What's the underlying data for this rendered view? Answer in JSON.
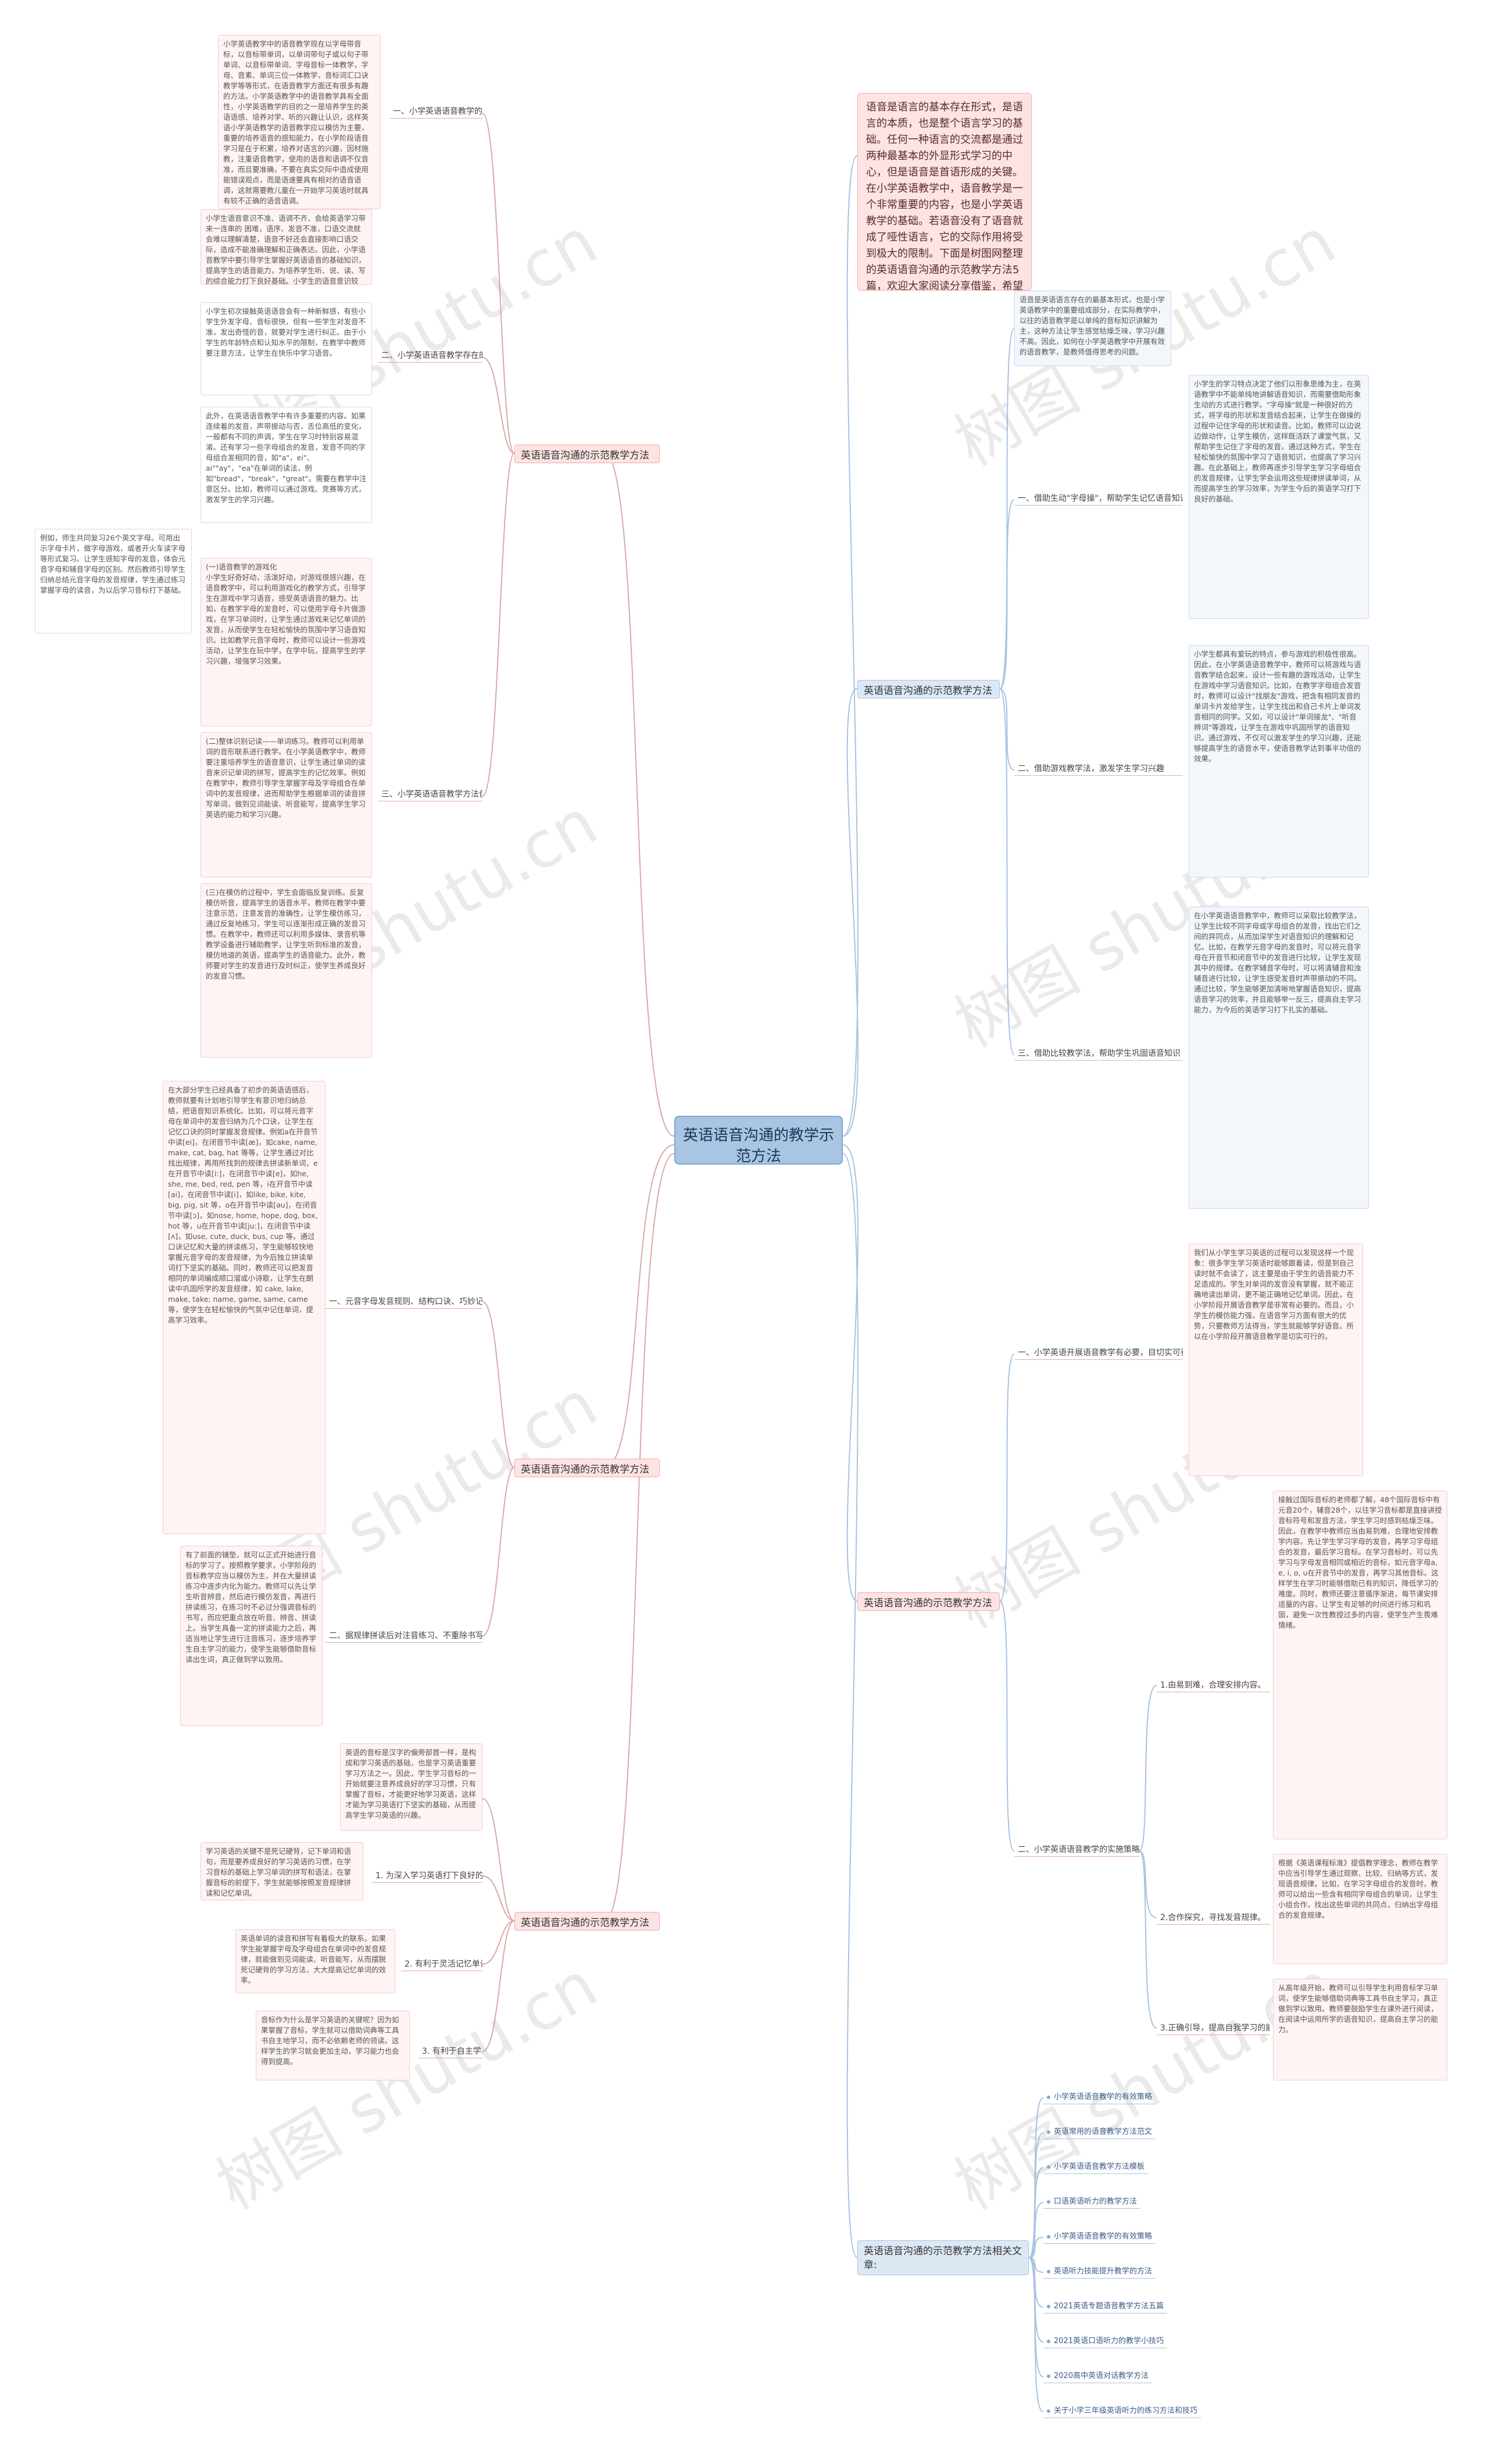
{
  "central": "英语语音沟通的教学示范方法",
  "watermark": "树图 shutu.cn",
  "intro": "语音是语言的基本存在形式，是语言的本质，也是整个语言学习的基础。任何一种语言的交流都是通过两种最基本的外显形式学习的中心，但是语音是首语形成的关键。在小学英语教学中，语音教学是一个非常重要的内容，也是小学英语教学的基础。若语音没有了语音就成了哑性语言，它的交际作用将受到极大的限制。下面是树图网整理的英语语音沟通的示范教学方法5篇，欢迎大家阅读分享借鉴，希望大家喜欢，也希望对大家有所帮助。",
  "left": {
    "method1": {
      "title": "英语语音沟通的示范教学方法1",
      "subs": [
        {
          "label": "一、小学英语语音教学的内容",
          "leaf": "小学英语教学中的语音教学现在以字母带音标，以音标带单词，以单词带句子或以句子带单词、以音标带单词、字母音标一体教学，字母、音素、单词三位一体教学，音标词汇口诀教学等等形式，在语音教学方面还有很多有趣的方法。小学英语教学中的语音教学具有全面性，小学英语教学的目的之一是培养学生的英语语感、培养对学、听的兴趣让认识，这样英语小学英语教学的语音教学应以模仿为主要，重要的培养语音的感知能力，在小学阶段语音学习是在于积累，培养对语言的兴趣，因材施教，注重语音教学，使用的语音和语调不仅音准，而且要准确，不要在真实交际中造成使用能错误观点，而是语速要具有相对的语音语调，这就需要教儿童在一开始学习英语时就具有较不正确的语音语调。"
        },
        {
          "label": "二、小学英语语音教学存在的问题",
          "leaf": "小学生语音意识不准、语调不齐、会给英语学习带来一连串的 困难，语序、发音不准，口语交流就会难以理解清楚，语音不好还会直接影响口语交际，造成不能准确理解和正确表达。因此，小学语音教学中要引导学生掌握好英语语音的基础知识，提高学生的语音能力，为培养学生听、说、读、写的综合能力打下良好基础。小学生的语音意识较差，会造成学习上的困难，从而影响学习兴趣。"
        },
        {
          "label": "",
          "leaf": "小学生初次接触英语语音会有一种新鲜感，有些小学生外发字母、音标很快，但有一些学生对发音不准，发出奇怪的音，就要对学生进行纠正。由于小学生的年龄特点和认知水平的限制，在教学中教师要注意方法，让学生在快乐中学习语音。"
        },
        {
          "label": "",
          "leaf": "此外，在英语语音教学中有许多重要的内容。如果连续着的发音，声带振动与否，舌位高低的变化，一般都有不同的声调，学生在学习时特别容易混淆。还有学习一些字母组合的发音，发音不同的字母组合发相同的音，如\"a\"，ei\"、ai\"\"ay\"，\"ea\"在单词的读法，例如\"bread\"，\"break\"，\"great\"。需要在教学中注意区分。比如，教师可以通过游戏、竞赛等方式，激发学生的学习兴趣。"
        },
        {
          "label": "三、小学英语语音教学方法创新",
          "leaf": "(一)语音教学的游戏化\n小学生好奇好动，活泼好动，对游戏很感兴趣，在语音教学中，可以利用游戏化的教学方式，引导学生在游戏中学习语音，感受英语语音的魅力。比如，在教学字母的发音时，可以使用字母卡片做游戏，在学习单词时，让学生通过游戏来记忆单词的发音，从而使学生在轻松愉快的氛围中学习语音知识。比如教学元音字母时，教师可以设计一些游戏活动，让学生在玩中学，在学中玩，提高学生的学习兴趣，增强学习效果。"
        },
        {
          "label": "",
          "leaf": "(二)整体识别记读——单词练习。教师可以利用单词的音形联系进行教学。在小学英语教学中，教师要注重培养学生的语音意识，让学生通过单词的读音来识记单词的拼写，提高学生的记忆效率。例如在教学中，教师引导学生掌握字母及字母组合在单词中的发音规律，进而帮助学生根据单词的读音拼写单词，做到见词能读、听音能写，提高学生学习英语的能力和学习兴趣。"
        },
        {
          "label": "",
          "leaf": "(三)在模仿的过程中，学生会面临反复训练。反复模仿听音，提高学生的语音水平。教师在教学中要注意示范，注意发音的准确性，让学生模仿练习，通过反复地练习，学生可以逐渐形成正确的发音习惯。在教学中，教师还可以利用多媒体、录音机等教学设备进行辅助教学，让学生听到标准的发音，模仿地道的英语，提高学生的语音能力。此外，教师要对学生的发音进行及时纠正，使学生养成良好的发音习惯。"
        }
      ],
      "side_note": "例如，师生共同复习26个英文字母。可用出示字母卡片，做字母游戏，或者开火车读字母等形式复习。让学生感知字母的发音，体会元音字母和辅音字母的区别。然后教师引导学生归纳总结元音字母的发音规律，学生通过练习掌握字母的读音，为以后学习音标打下基础。"
    },
    "method3": {
      "title": "英语语音沟通的示范教学方法3",
      "subs": [
        {
          "label": "一、元音字母发音规则、结构口诀、巧妙记忆",
          "leaf": "在大部分学生已经具备了初步的英语语感后，教师就要有计划地引导学生有意识地归纳总结，把语音知识系统化。比如，可以将元音字母在单词中的发音归纳为几个口诀，让学生在记忆口诀的同时掌握发音规律。例如a在开音节中读[ei]，在闭音节中读[æ]，如cake, name, make, cat, bag, hat 等等，让学生通过对比找出规律，再用所找到的规律去拼读新单词，e在开音节中读[i:]，在闭音节中读[e]，如he, she, me, bed, red, pen 等，i在开音节中读[ai]，在闭音节中读[i]，如like, bike, kite, big, pig, sit 等，o在开音节中读[əu]，在闭音节中读[ɔ]，如nose, home, hope, dog, box, hot 等，u在开音节中读[ju:]，在闭音节中读[ʌ]，如use, cute, duck, bus, cup 等。通过口诀记忆和大量的拼读练习，学生能够较快地掌握元音字母的发音规律，为今后独立拼读单词打下坚实的基础。同时，教师还可以把发音相同的单词编成顺口溜或小诗歌，让学生在朗读中巩固所学的发音规律，如 cake, lake, make, take; name, game, same, came 等，使学生在轻松愉快的气氛中记住单词，提高学习效率。"
        },
        {
          "label": "二、据规律拼读后对注音练习、不重除书写",
          "leaf": "有了前面的铺垫，就可以正式开始进行音标的学习了。按照教学要求，小学阶段的音标教学应当以模仿为主，并在大量拼读练习中逐步内化为能力。教师可以先让学生听音辨音，然后进行模仿发音，再进行拼读练习，在练习时不必过分强调音标的书写，而应把重点放在听音、辨音、拼读上。当学生具备一定的拼读能力之后，再适当地让学生进行注音练习，逐步培养学生自主学习的能力，使学生能够借助音标读出生词，真正做到学以致用。"
        }
      ]
    },
    "method5": {
      "title": "英语语音沟通的示范教学方法5",
      "intro_leaf": "英语的音标是汉字的偏旁部首一样，是构成和学习英语的基础，也是学习英语重要学习方法之一。因此，学生学习音标的一开始就要注意养成良好的学习习惯，只有掌握了音标，才能更好地学习英语，这样才能为学习英语打下坚实的基础，从而提高学生学习英语的兴趣。",
      "subs": [
        {
          "label": "1. 为深入学习英语打下良好的基础",
          "leaf": "学习英语的关键不是死记硬背，记下单词和语句，而是要养成良好的学习英语的习惯，在学习音标的基础上学习单词的拼写和语法，在掌握音标的前提下，学生就能够按照发音规律拼读和记忆单词。"
        },
        {
          "label": "2. 有利于灵活记忆单词",
          "leaf": "英语单词的读音和拼写有着极大的联系。如果学生能掌握字母及字母组合在单词中的发音规律，就能做到见词能读、听音能写，从而摆脱死记硬背的学习方法，大大提高记忆单词的效率。"
        },
        {
          "label": "3. 有利于自主学习",
          "leaf": "音标作为什么是学习英语的关键呢？因为如果掌握了音标，学生就可以借助词典等工具书自主地学习，而不必依赖老师的领读。这样学生的学习就会更加主动，学习能力也会得到提高。"
        }
      ]
    }
  },
  "right": {
    "method2": {
      "title": "英语语音沟通的示范教学方法2",
      "intro_leaf": "语音是英语语言存在的最基本形式，也是小学英语教学中的重要组成部分，在实际教学中，以往的语音教学是以单纯的音标知识讲解为主，这种方法让学生感觉枯燥乏味，学习兴趣不高。因此，如何在小学英语教学中开展有效的语音教学，是教师值得思考的问题。",
      "subs": [
        {
          "label": "一、借助生动\"字母操\"，帮助学生记忆语音知识",
          "leaf": "小学生的学习特点决定了他们以形象思维为主，在英语教学中不能单纯地讲解语音知识，而需要借助形象生动的方式进行教学。\"字母操\"就是一种很好的方式，将字母的形状和发音结合起来，让学生在做操的过程中记住字母的形状和读音。比如，教师可以边说边做动作，让学生模仿，这样既活跃了课堂气氛，又帮助学生记住了字母的发音。通过这种方式，学生在轻松愉快的氛围中学习了语音知识，也提高了学习兴趣。在此基础上，教师再逐步引导学生学习字母组合的发音规律，让学生学会运用这些规律拼读单词，从而提高学生的学习效率，为学生今后的英语学习打下良好的基础。"
        },
        {
          "label": "二、借助游戏教学法，激发学生学习兴趣",
          "leaf": "小学生都具有爱玩的特点，参与游戏的积极性很高。因此，在小学英语语音教学中，教师可以将游戏与语音教学结合起来，设计一些有趣的游戏活动，让学生在游戏中学习语音知识。比如，在教学字母组合发音时，教师可以设计\"找朋友\"游戏，把含有相同发音的单词卡片发给学生，让学生找出和自己卡片上单词发音相同的同学。又如，可以设计\"单词接龙\"、\"听音辨词\"等游戏，让学生在游戏中巩固所学的语音知识。通过游戏，不仅可以激发学生的学习兴趣，还能够提高学生的语音水平，使语音教学达到事半功倍的效果。"
        },
        {
          "label": "三、借助比较教学法，帮助学生巩固语音知识",
          "leaf": "在小学英语语音教学中，教师可以采取比较教学法，让学生比较不同字母或字母组合的发音，找出它们之间的异同点，从而加深学生对语音知识的理解和记忆。比如，在教学元音字母的发音时，可以将元音字母在开音节和闭音节中的发音进行比较，让学生发现其中的规律。在教学辅音字母时，可以将清辅音和浊辅音进行比较，让学生感受发音时声带振动的不同。通过比较，学生能够更加清晰地掌握语音知识，提高语音学习的效率，并且能够举一反三，提高自主学习能力，为今后的英语学习打下扎实的基础。"
        }
      ]
    },
    "method4": {
      "title": "英语语音沟通的示范教学方法4",
      "subs": [
        {
          "label": "一、小学英语开展语音教学有必要，目切实可行",
          "leaf": "我们从小学生学习英语的过程可以发现这样一个现象：很多学生学习英语时能够跟着读，但是到自己读时就不会读了，这主要是由于学生的语音能力不足造成的。学生对单词的发音没有掌握，就不能正确地读出单词，更不能正确地记忆单词。因此，在小学阶段开展语音教学是非常有必要的。而且，小学生的模仿能力强，在语音学习方面有很大的优势，只要教师方法得当，学生就能够学好语音。所以在小学阶段开展语音教学是切实可行的。"
        },
        {
          "label": "二、小学英语语音教学的实施策略",
          "leaf": ""
        }
      ],
      "strategies": [
        {
          "label": "1.由易到难，合理安排内容。",
          "leaf": "接触过国际音标的老师都了解，48个国际音标中有元音20个，辅音28个，以往学习音标都是直接讲授音标符号和发音方法，学生学习时感到枯燥乏味。因此，在教学中教师应当由易到难，合理地安排教学内容。先让学生学习字母的发音，再学习字母组合的发音，最后学习音标。在学习音标时，可以先学习与字母发音相同或相近的音标，如元音字母a, e, i, o, u在开音节中的发音，再学习其他音标。这样学生在学习时能够借助已有的知识，降低学习的难度。同时，教师还要注意循序渐进，每节课安排适量的内容，让学生有足够的时间进行练习和巩固，避免一次性教授过多的内容，使学生产生畏难情绪。"
        },
        {
          "label": "2.合作探究，寻找发音规律。",
          "leaf": "根据《英语课程标准》提倡教学理念，教师在教学中应当引导学生通过观察、比较、归纳等方式，发现语音规律。比如，在学习字母组合的发音时，教师可以给出一些含有相同字母组合的单词，让学生小组合作，找出这些单词的共同点，归纳出字母组合的发音规律。"
        },
        {
          "label": "3.正确引导，提高自我学习的能力。",
          "leaf": "从高年级开始，教师可以引导学生利用音标学习单词，使学生能够借助词典等工具书自主学习，真正做到学以致用。教师要鼓励学生在课外进行阅读，在阅读中运用所学的语音知识，提高自主学习的能力。"
        }
      ]
    },
    "related": {
      "title": "英语语音沟通的示范教学方法相关文章:",
      "items": [
        "小学英语语音教学的有效策略",
        "英语常用的语音教学方法范文",
        "小学英语语音教学方法模板",
        "口语英语听力的教学方法",
        "小学英语语音教学的有效策略",
        "英语听力技能提升教学的方法",
        "2021英语专题语音教学方法五篇",
        "2021英语口语听力的教学小技巧",
        "2020高中英语对话教学方法",
        "关于小学三年级英语听力的练习方法和技巧"
      ]
    }
  }
}
